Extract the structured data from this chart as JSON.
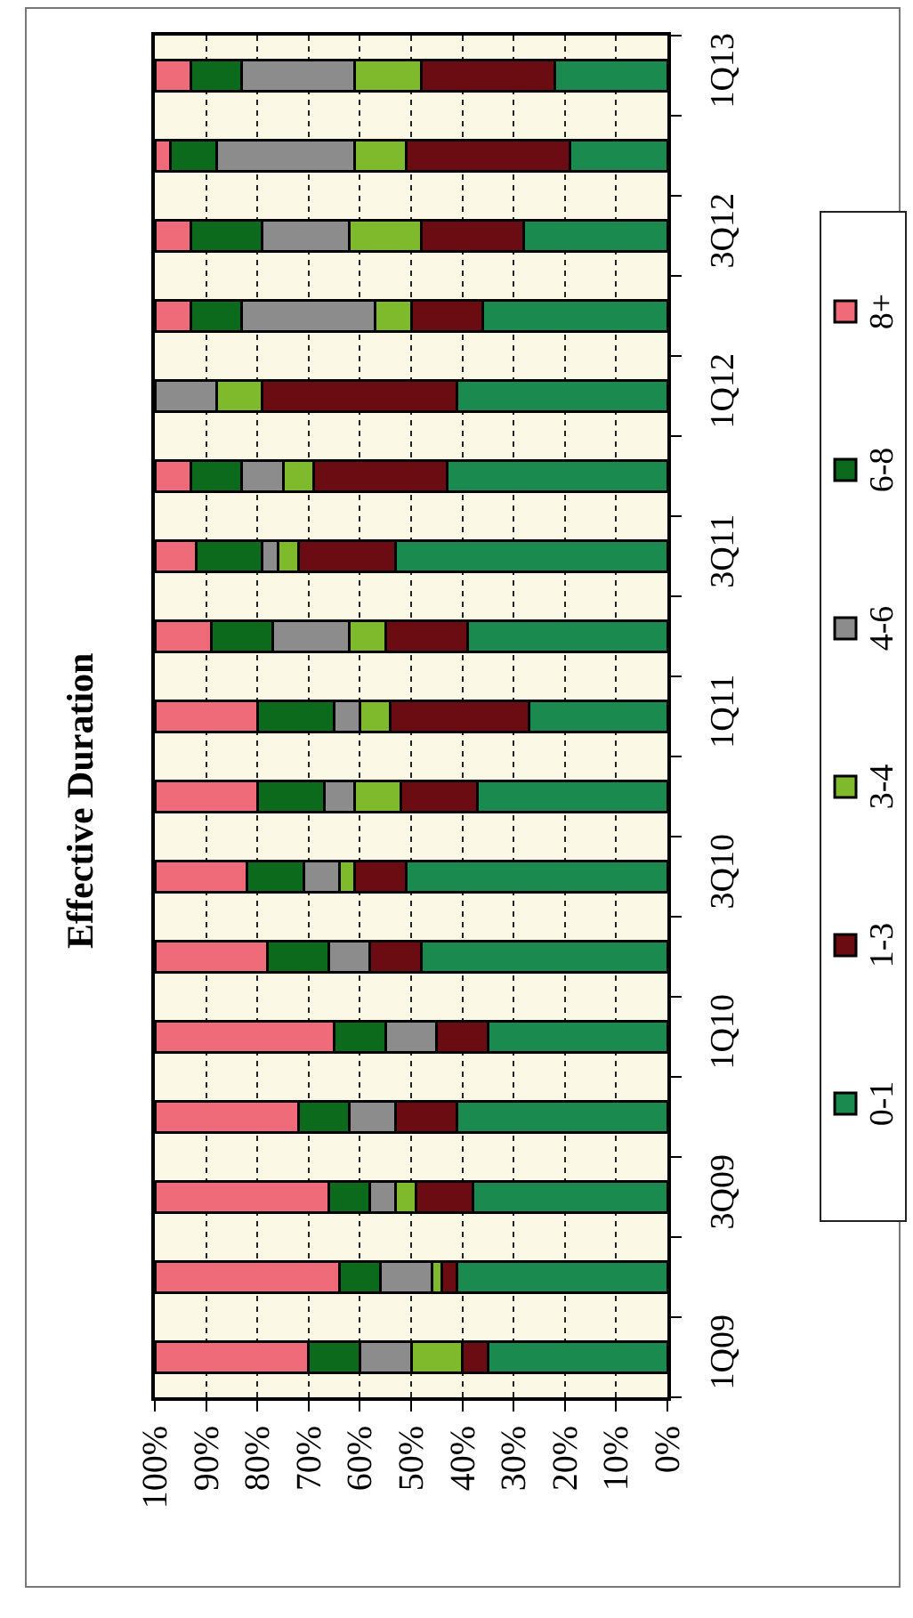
{
  "chart_data": {
    "type": "bar",
    "title": "Effective Duration",
    "orientation": "horizontal",
    "stacked": true,
    "categories": [
      "1Q13",
      null,
      "3Q12",
      null,
      "1Q12",
      null,
      "3Q11",
      null,
      "1Q11",
      null,
      "3Q10",
      null,
      "1Q10",
      null,
      "3Q09",
      null,
      "1Q09"
    ],
    "series": [
      {
        "name": "0-1",
        "color": "#1b8a4f",
        "values": [
          22,
          19,
          28,
          36,
          41,
          43,
          53,
          39,
          27,
          37,
          51,
          48,
          35,
          41,
          38,
          41,
          35
        ]
      },
      {
        "name": "1-3",
        "color": "#6b0b12",
        "values": [
          26,
          32,
          20,
          14,
          38,
          26,
          19,
          16,
          27,
          15,
          10,
          10,
          10,
          12,
          11,
          3,
          5
        ]
      },
      {
        "name": "3-4",
        "color": "#7fba2c",
        "values": [
          13,
          10,
          14,
          7,
          9,
          6,
          4,
          7,
          6,
          9,
          3,
          null,
          null,
          null,
          4,
          2,
          10
        ]
      },
      {
        "name": "4-6",
        "color": "#8c8c8c",
        "values": [
          22,
          27,
          17,
          26,
          12,
          8,
          3,
          15,
          5,
          6,
          7,
          8,
          10,
          9,
          5,
          10,
          10
        ]
      },
      {
        "name": "6-8",
        "color": "#0c6a1c",
        "values": [
          10,
          9,
          14,
          10,
          null,
          10,
          13,
          12,
          15,
          13,
          11,
          12,
          10,
          10,
          8,
          8,
          10
        ]
      },
      {
        "name": "8+",
        "color": "#f06b7a",
        "values": [
          7,
          3,
          7,
          7,
          null,
          7,
          8,
          11,
          20,
          20,
          18,
          22,
          35,
          28,
          34,
          36,
          30
        ]
      }
    ],
    "xlim": [
      100,
      0
    ],
    "xticks": [
      {
        "value": 100,
        "label": "100%"
      },
      {
        "value": 90,
        "label": "90%"
      },
      {
        "value": 80,
        "label": "80%"
      },
      {
        "value": 70,
        "label": "70%"
      },
      {
        "value": 60,
        "label": "60%"
      },
      {
        "value": 50,
        "label": "50%"
      },
      {
        "value": 40,
        "label": "40%"
      },
      {
        "value": 30,
        "label": "30%"
      },
      {
        "value": 20,
        "label": "20%"
      },
      {
        "value": 10,
        "label": "10%"
      },
      {
        "value": 0,
        "label": "0%"
      }
    ],
    "grid": "x",
    "legend": "right"
  }
}
